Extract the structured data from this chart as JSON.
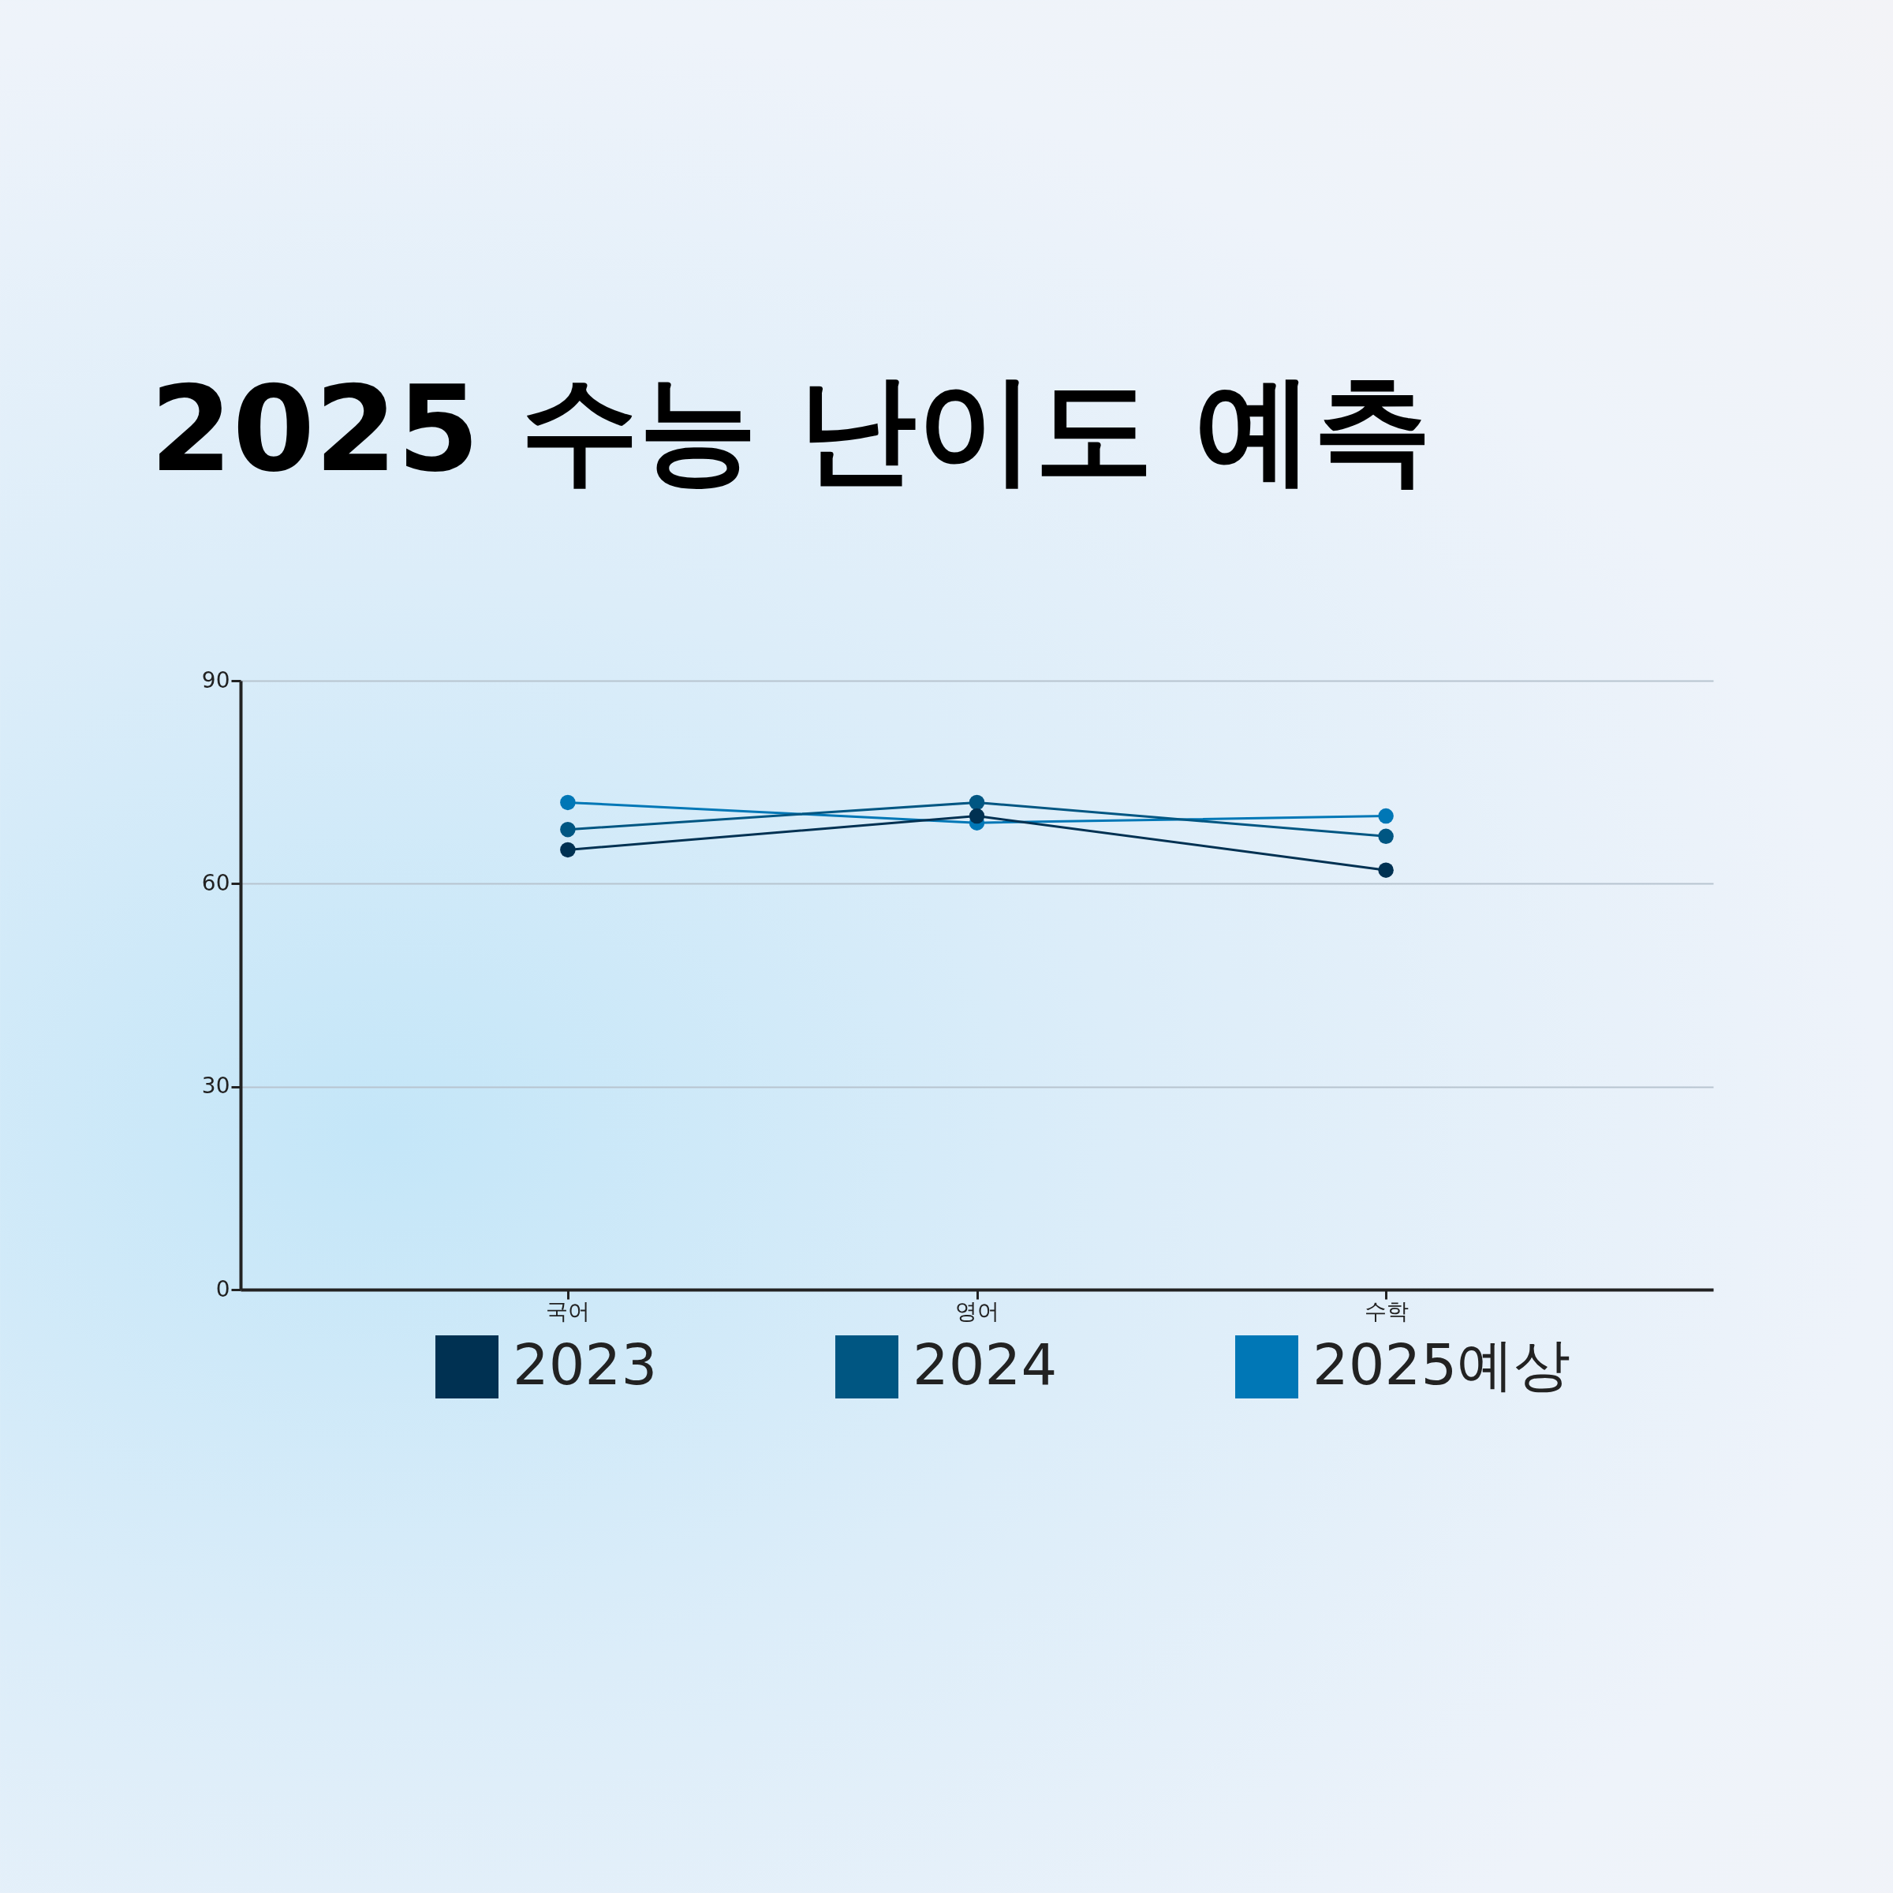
{
  "chart_data": {
    "type": "line",
    "title": "2025 수능 난이도 예측",
    "categories": [
      "국어",
      "영어",
      "수학"
    ],
    "series": [
      {
        "name": "2023",
        "color": "#003152",
        "values": [
          65,
          70,
          62
        ]
      },
      {
        "name": "2024",
        "color": "#005682",
        "values": [
          68,
          72,
          67
        ]
      },
      {
        "name": "2025예상",
        "color": "#0077b6",
        "values": [
          72,
          69,
          70
        ]
      }
    ],
    "ylim": [
      0,
      90
    ],
    "yticks": [
      0,
      30,
      60,
      90
    ],
    "grid": "y",
    "legend": "bottom",
    "marker": "circle",
    "line_style": "solid"
  }
}
